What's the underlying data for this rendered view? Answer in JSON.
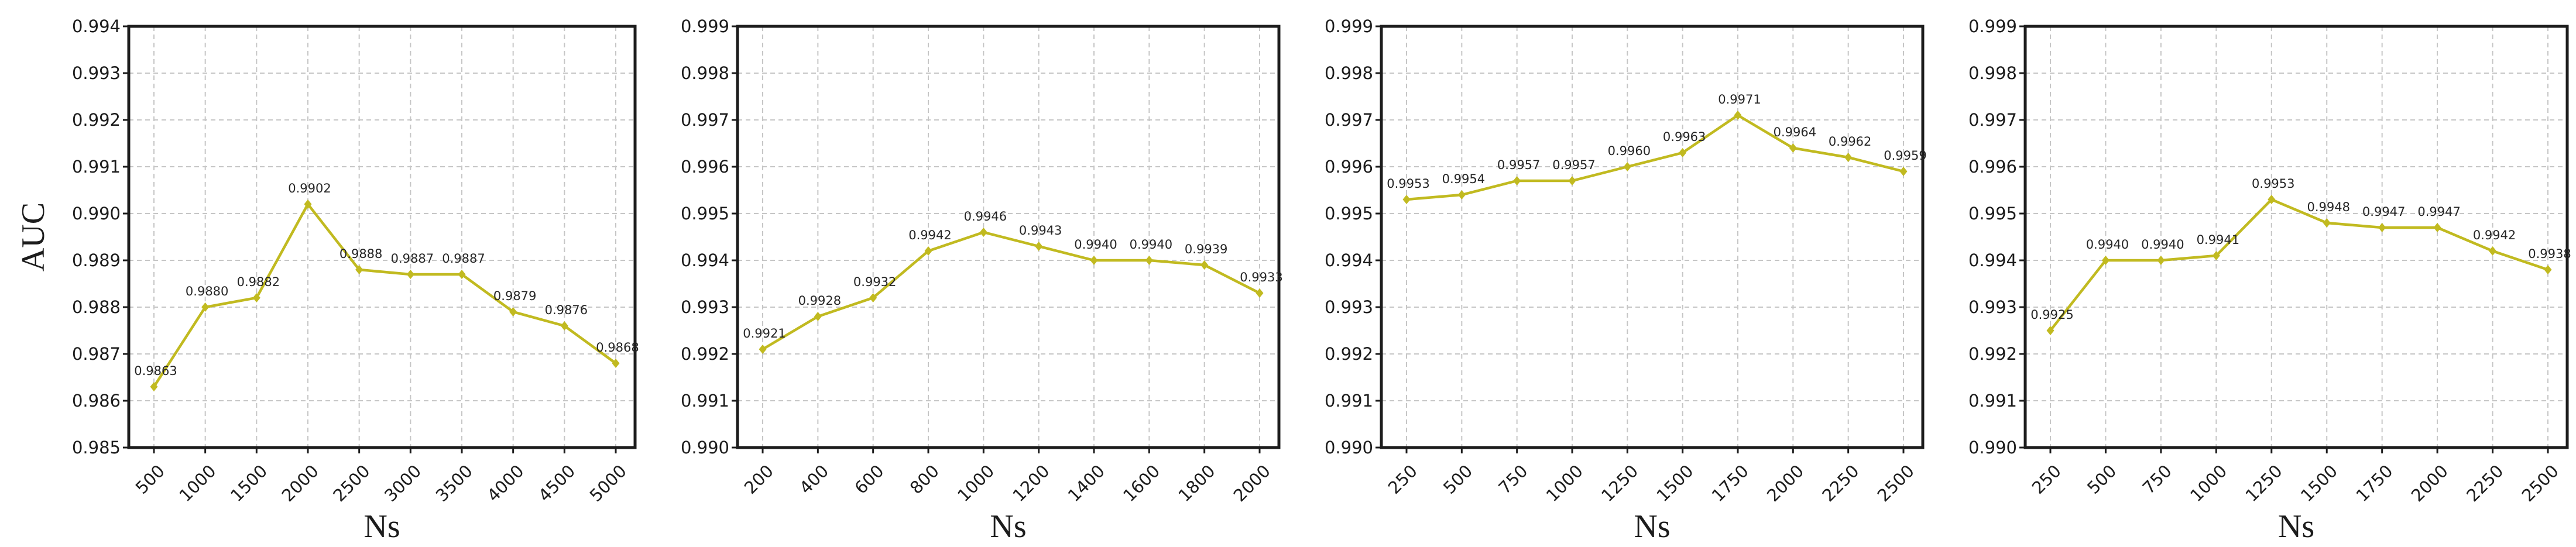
{
  "figure": {
    "background_color": "#ffffff",
    "x_axis_label": "Ns",
    "y_axis_label": "AUC"
  },
  "style": {
    "line_color": "#c1ba20",
    "marker_color": "#c1ba20",
    "grid_color": "#c6c6c6",
    "axis_color": "#1c1c1c",
    "tick_text_color": "#1c1c1c",
    "annotation_color": "#262626"
  },
  "chart_data": [
    {
      "type": "line",
      "title": "",
      "xlabel": "Ns",
      "ylabel": "AUC",
      "x": [
        500,
        1000,
        1500,
        2000,
        2500,
        3000,
        3500,
        4000,
        4500,
        5000
      ],
      "values": [
        0.9863,
        0.988,
        0.9882,
        0.9902,
        0.9888,
        0.9887,
        0.9887,
        0.9879,
        0.9876,
        0.9868
      ],
      "point_labels": [
        "0.9863",
        "0.9880",
        "0.9882",
        "0.9902",
        "0.9888",
        "0.9887",
        "0.9887",
        "0.9879",
        "0.9876",
        "0.9868"
      ],
      "ylim": [
        0.985,
        0.994
      ],
      "ytick_step": 0.001,
      "ytick_decimals": 3,
      "grid": true,
      "legend": "none",
      "xtick_rotation": 45
    },
    {
      "type": "line",
      "title": "",
      "xlabel": "Ns",
      "ylabel": "",
      "x": [
        200,
        400,
        600,
        800,
        1000,
        1200,
        1400,
        1600,
        1800,
        2000
      ],
      "values": [
        0.9921,
        0.9928,
        0.9932,
        0.9942,
        0.9946,
        0.9943,
        0.994,
        0.994,
        0.9939,
        0.9933
      ],
      "point_labels": [
        "0.9921",
        "0.9928",
        "0.9932",
        "0.9942",
        "0.9946",
        "0.9943",
        "0.9940",
        "0.9940",
        "0.9939",
        "0.9933"
      ],
      "ylim": [
        0.99,
        0.999
      ],
      "ytick_step": 0.001,
      "ytick_decimals": 3,
      "grid": true,
      "legend": "none",
      "xtick_rotation": 45
    },
    {
      "type": "line",
      "title": "",
      "xlabel": "Ns",
      "ylabel": "",
      "x": [
        250,
        500,
        750,
        1000,
        1250,
        1500,
        1750,
        2000,
        2250,
        2500
      ],
      "values": [
        0.9953,
        0.9954,
        0.9957,
        0.9957,
        0.996,
        0.9963,
        0.9971,
        0.9964,
        0.9962,
        0.9959
      ],
      "point_labels": [
        "0.9953",
        "0.9954",
        "0.9957",
        "0.9957",
        "0.9960",
        "0.9963",
        "0.9971",
        "0.9964",
        "0.9962",
        "0.9959"
      ],
      "ylim": [
        0.99,
        0.999
      ],
      "ytick_step": 0.001,
      "ytick_decimals": 3,
      "grid": true,
      "legend": "none",
      "xtick_rotation": 45
    },
    {
      "type": "line",
      "title": "",
      "xlabel": "Ns",
      "ylabel": "",
      "x": [
        250,
        500,
        750,
        1000,
        1250,
        1500,
        1750,
        2000,
        2250,
        2500
      ],
      "values": [
        0.9925,
        0.994,
        0.994,
        0.9941,
        0.9953,
        0.9948,
        0.9947,
        0.9947,
        0.9942,
        0.9938
      ],
      "point_labels": [
        "0.9925",
        "0.9940",
        "0.9940",
        "0.9941",
        "0.9953",
        "0.9948",
        "0.9947",
        "0.9947",
        "0.9942",
        "0.9938"
      ],
      "ylim": [
        0.99,
        0.999
      ],
      "ytick_step": 0.001,
      "ytick_decimals": 3,
      "grid": true,
      "legend": "none",
      "xtick_rotation": 45
    }
  ]
}
